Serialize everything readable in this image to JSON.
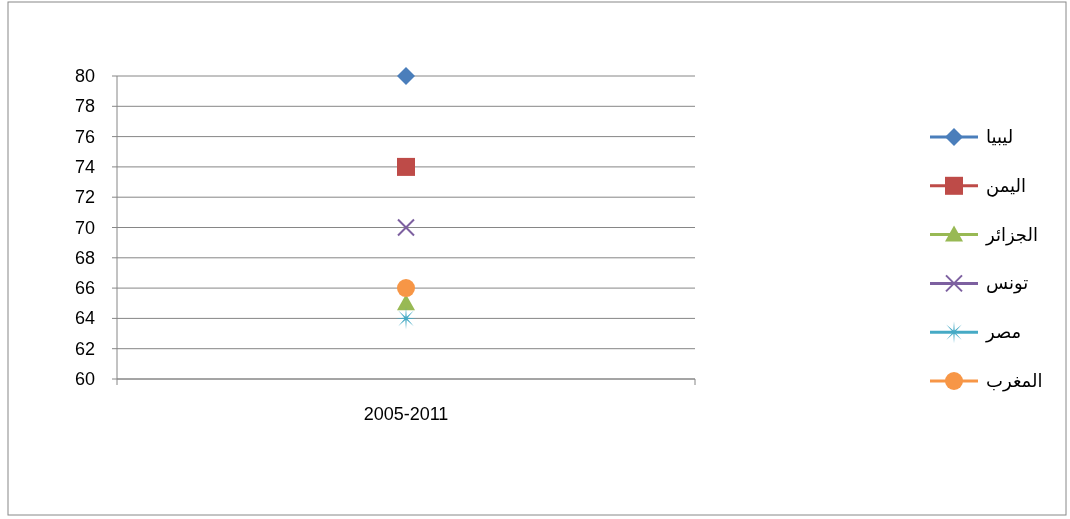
{
  "chart_data": {
    "type": "line",
    "categories": [
      "2005-2011"
    ],
    "ylim": [
      60,
      80
    ],
    "yticks": [
      60,
      62,
      64,
      66,
      68,
      70,
      72,
      74,
      76,
      78,
      80
    ],
    "grid": "y",
    "legend": "right",
    "series": [
      {
        "name": "ليبيا",
        "color": "#4a7ebb",
        "marker": "diamond",
        "values": [
          80
        ]
      },
      {
        "name": "اليمن",
        "color": "#be4b48",
        "marker": "square",
        "values": [
          74
        ]
      },
      {
        "name": "الجزائر",
        "color": "#98b954",
        "marker": "triangle",
        "values": [
          65
        ]
      },
      {
        "name": "تونس",
        "color": "#7d60a0",
        "marker": "cross",
        "values": [
          70
        ]
      },
      {
        "name": "مصر",
        "color": "#46aac5",
        "marker": "star",
        "values": [
          64
        ]
      },
      {
        "name": "المغرب",
        "color": "#f79646",
        "marker": "circle",
        "values": [
          66
        ]
      }
    ]
  }
}
